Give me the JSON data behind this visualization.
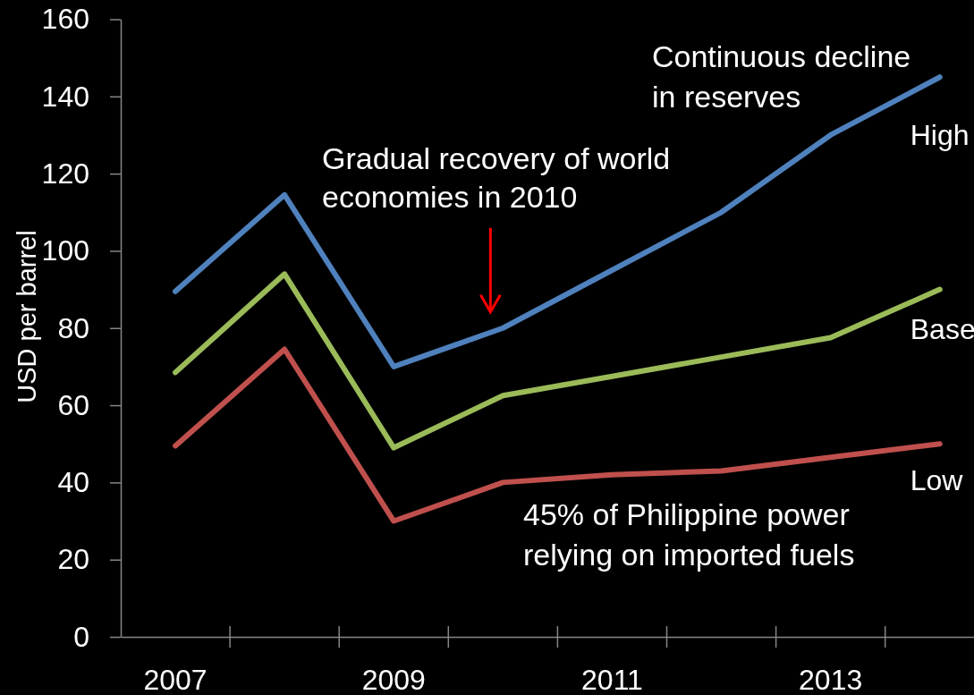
{
  "chart_data": {
    "type": "line",
    "ylabel": "USD per barrel",
    "categories": [
      "2007",
      null,
      "2009",
      null,
      "2011",
      null,
      "2013",
      null
    ],
    "series": [
      {
        "name": "High",
        "color": "#4f81bd",
        "values": [
          89.5,
          114.5,
          70,
          80,
          95,
          110,
          130,
          145
        ]
      },
      {
        "name": "Base",
        "color": "#9bbb59",
        "values": [
          68.5,
          94,
          49,
          62.5,
          67.5,
          72.5,
          77.5,
          90
        ]
      },
      {
        "name": "Low",
        "color": "#c0504d",
        "values": [
          49.5,
          74.5,
          30,
          40,
          42,
          43,
          46.5,
          50
        ]
      }
    ],
    "ylim": [
      0,
      160
    ],
    "yticks": [
      0,
      20,
      40,
      60,
      80,
      100,
      120,
      140,
      160
    ],
    "annotations": [
      "Continuous decline in reserves",
      "Gradual recovery of world economies in 2010",
      "45% of Philippine power relying on imported fuels"
    ]
  }
}
